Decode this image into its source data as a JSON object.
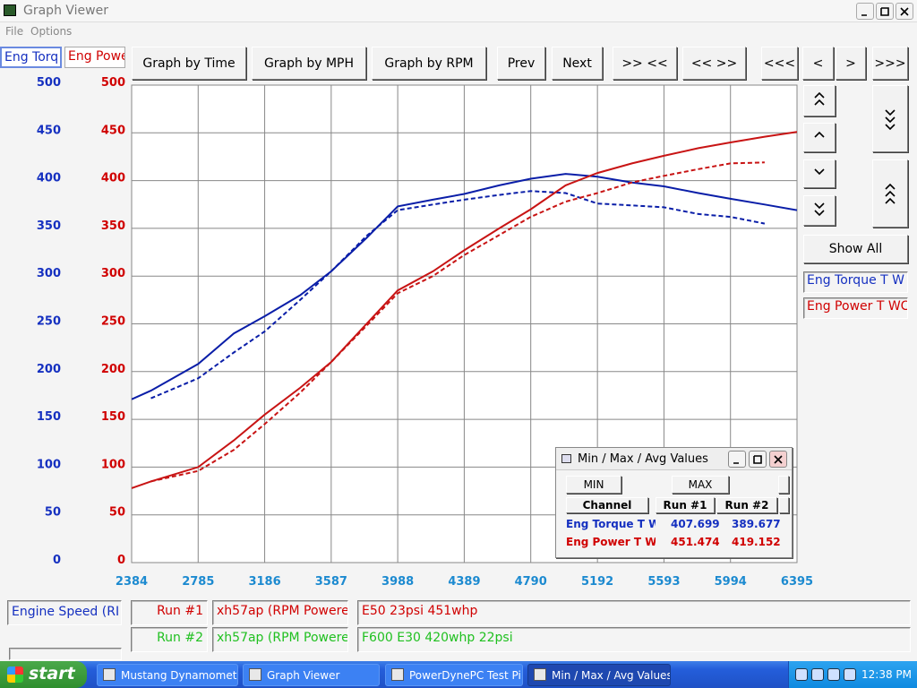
{
  "window": {
    "title": "Graph Viewer"
  },
  "menu": [
    "File",
    "Options"
  ],
  "channel_tabs": [
    "Eng Torq",
    "Eng Powe"
  ],
  "toolbar": [
    "Graph by Time",
    "Graph by MPH",
    "Graph by RPM",
    "Prev",
    "Next",
    ">> <<",
    "<< >>",
    "<<<",
    "<",
    ">",
    ">>>"
  ],
  "side_panel": {
    "button": "Show All",
    "channels": [
      "Eng Torque T W",
      "Eng Power T WC"
    ]
  },
  "chart_data": {
    "type": "line",
    "x": [
      2384,
      2500,
      2785,
      3000,
      3186,
      3400,
      3587,
      3800,
      3988,
      4200,
      4389,
      4600,
      4790,
      5000,
      5192,
      5400,
      5593,
      5800,
      5994,
      6200,
      6395
    ],
    "xlim": [
      2384,
      6395
    ],
    "xticks": [
      2384,
      2785,
      3186,
      3587,
      3988,
      4389,
      4790,
      5192,
      5593,
      5994,
      6395
    ],
    "ylim": [
      0,
      500
    ],
    "yticks": [
      0,
      50,
      100,
      150,
      200,
      250,
      300,
      350,
      400,
      450,
      500
    ],
    "y2lim": [
      0,
      500
    ],
    "y2ticks": [
      0,
      50,
      100,
      150,
      200,
      250,
      300,
      350,
      400,
      450,
      500
    ],
    "grid": true,
    "series": [
      {
        "color": "#0a1ea8",
        "dash": false,
        "values": [
          171,
          180,
          208,
          240,
          258,
          280,
          305,
          340,
          373,
          380,
          386,
          395,
          402,
          407,
          404,
          398,
          394,
          387,
          381,
          375,
          369
        ]
      },
      {
        "color": "#0a1ea8",
        "dash": true,
        "values": [
          null,
          172,
          193,
          220,
          242,
          275,
          305,
          342,
          369,
          375,
          380,
          385,
          389,
          387,
          376,
          374,
          372,
          365,
          362,
          355,
          null
        ]
      },
      {
        "color": "#c81414",
        "dash": false,
        "axis": "y2",
        "values": [
          78,
          85,
          100,
          128,
          155,
          183,
          210,
          250,
          285,
          305,
          327,
          350,
          370,
          395,
          408,
          418,
          426,
          434,
          440,
          446,
          451
        ]
      },
      {
        "color": "#c81414",
        "dash": true,
        "axis": "y2",
        "values": [
          null,
          85,
          96,
          118,
          145,
          178,
          210,
          248,
          282,
          300,
          322,
          343,
          362,
          378,
          387,
          398,
          405,
          412,
          418,
          419,
          null
        ]
      }
    ]
  },
  "popup": {
    "title": "Min / Max / Avg Values",
    "buttons": [
      "MIN",
      "MAX"
    ],
    "header": [
      "Channel",
      "Run #1",
      "Run #2"
    ],
    "rows": [
      [
        "Eng Torque T W",
        407.699,
        389.677
      ],
      [
        "Eng Power T W(",
        451.474,
        419.152
      ]
    ]
  },
  "footer": {
    "channel": "Engine Speed (RI",
    "runs": [
      [
        "Run #1",
        "xh57ap (RPM Powere",
        "E50 23psi 451whp"
      ],
      [
        "Run #2",
        "xh57ap (RPM Powere",
        "F600 E30 420whp 22psi"
      ]
    ]
  },
  "taskbar": {
    "start": "start",
    "tasks": [
      "Mustang Dynamomet...",
      "Graph Viewer",
      "PowerDynePC Test Pi...",
      "Min / Max / Avg Values"
    ],
    "clock": "12:38 PM"
  }
}
